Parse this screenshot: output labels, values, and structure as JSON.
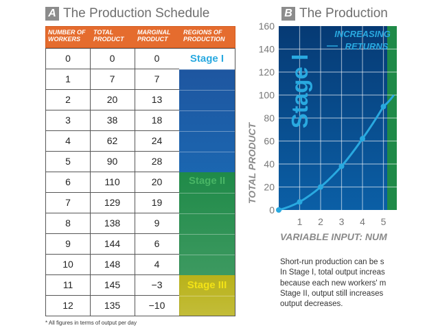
{
  "panel_a": {
    "letter": "A",
    "title": "The Production Schedule",
    "headers": [
      "NUMBER OF WORKERS",
      "TOTAL PRODUCT",
      "MARGINAL PRODUCT",
      "REGIONS OF PRODUCTION"
    ],
    "rows": [
      {
        "workers": "0",
        "total": "0",
        "marginal": "0"
      },
      {
        "workers": "1",
        "total": "7",
        "marginal": "7"
      },
      {
        "workers": "2",
        "total": "20",
        "marginal": "13"
      },
      {
        "workers": "3",
        "total": "38",
        "marginal": "18"
      },
      {
        "workers": "4",
        "total": "62",
        "marginal": "24"
      },
      {
        "workers": "5",
        "total": "90",
        "marginal": "28"
      },
      {
        "workers": "6",
        "total": "110",
        "marginal": "20"
      },
      {
        "workers": "7",
        "total": "129",
        "marginal": "19"
      },
      {
        "workers": "8",
        "total": "138",
        "marginal": "9"
      },
      {
        "workers": "9",
        "total": "144",
        "marginal": "6"
      },
      {
        "workers": "10",
        "total": "148",
        "marginal": "4"
      },
      {
        "workers": "11",
        "total": "145",
        "marginal": "−3"
      },
      {
        "workers": "12",
        "total": "135",
        "marginal": "−10"
      }
    ],
    "stages": [
      {
        "label": "Stage I",
        "from_row": 0,
        "to_row": 5,
        "label_color": "#29a9e0",
        "band_color": "#1a5aa8"
      },
      {
        "label": "Stage II",
        "from_row": 6,
        "to_row": 10,
        "label_color": "#48b565",
        "band_color": "#1f8a48"
      },
      {
        "label": "Stage III",
        "from_row": 11,
        "to_row": 12,
        "label_color": "#f2e216",
        "band_color": "#b9b21a"
      }
    ],
    "footnote": "* All figures in terms of output per day"
  },
  "panel_b": {
    "letter": "B",
    "title": "The Production",
    "description_lines": [
      "Short-run production can be s",
      "In Stage I, total output increas",
      "because each new workers' m",
      "Stage II, output still increases",
      "output decreases."
    ]
  },
  "chart_data": {
    "type": "line",
    "title": "The Production",
    "xlabel": "VARIABLE INPUT: NUM",
    "ylabel": "TOTAL PRODUCT",
    "xlim": [
      0,
      5.5
    ],
    "ylim": [
      0,
      160
    ],
    "x_ticks": [
      "1",
      "2",
      "3",
      "4",
      "5"
    ],
    "y_ticks": [
      "0",
      "20",
      "40",
      "60",
      "80",
      "100",
      "120",
      "140",
      "160"
    ],
    "grid": true,
    "series": [
      {
        "name": "Total Product",
        "x": [
          0,
          1,
          2,
          3,
          4,
          5,
          5.5
        ],
        "y": [
          0,
          7,
          20,
          38,
          62,
          90,
          100
        ]
      }
    ],
    "point_labels": [
      0,
      1,
      2,
      3,
      4,
      5
    ],
    "stage_label": "Stage I",
    "annotation_line1": "INCREASING",
    "annotation_line2": "RETURNS",
    "colors": {
      "bg_top": "#063a74",
      "bg_bottom": "#0b5fa6",
      "stage2_strip": "#1f8a48",
      "line": "#29a9e0",
      "grid": "#ffffff",
      "axis_text": "#777777"
    }
  }
}
